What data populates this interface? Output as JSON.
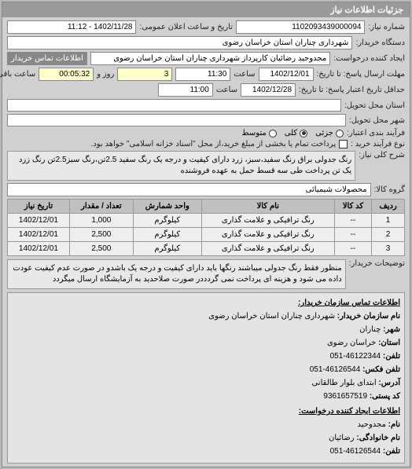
{
  "panel_title": "جزئیات اطلاعات نیاز",
  "row1": {
    "num_label": "شماره نیاز:",
    "num_value": "1102093439000094",
    "date_label": "تاریخ و ساعت اعلان عمومی:",
    "date_value": "1402/11/28 - 11:12"
  },
  "row2": {
    "buyer_label": "دستگاه خریدار:",
    "buyer_value": "شهرداری چناران استان خراسان رضوی"
  },
  "row3": {
    "creator_label": "ایجاد کننده درخواست:",
    "creator_value": "مجدوحید رضائیان کارپرداز شهرداری چناران استان خراسان رضوی",
    "contact_label": "اطلاعات تماس خریدار"
  },
  "row4": {
    "deadline_label": "مهلت ارسال پاسخ: تا تاریخ:",
    "deadline_date": "1402/12/01",
    "time_label": "ساعت",
    "deadline_time": "11:30",
    "days": "3",
    "days_label": "روز و",
    "remaining": "00:05:32",
    "remaining_label": "ساعت باقی مانده"
  },
  "row5": {
    "validity_label": "حداقل تاریخ اعتبار پاسخ: تا تاریخ:",
    "validity_date": "1402/12/28",
    "time_label": "ساعت",
    "validity_time": "11:00"
  },
  "row6": {
    "province_label": "استان محل تحویل:",
    "province_value": ""
  },
  "row7": {
    "city_label": "شهر محل تحویل:",
    "city_value": ""
  },
  "budget": {
    "label": "فرآیند بندی اعتبار:",
    "opt1": "جزئی",
    "opt2": "کلی",
    "opt3": "متوسط",
    "checked": 2
  },
  "payment": {
    "label": "نوع فرآیند خرید :",
    "check_label": "پرداخت تمام یا بخشی از مبلغ خرید،از محل \"اسناد خزانه اسلامی\" خواهد بود."
  },
  "main_title": {
    "label": "شرح کلی نیاز:",
    "text": "رنگ جدولی براق رنگ سفید،سبز، زرد دارای کیفیت و درجه یک رنگ سفید 2.5تن،رنگ سبز2.5تن رنگ زرد یک تن پرداخت طی سه قسط حمل به عهده فروشنده"
  },
  "goods": {
    "label": "گروه کالا:",
    "value": "محصولات شیمیائی"
  },
  "table": {
    "headers": [
      "ردیف",
      "کد کالا",
      "نام کالا",
      "واحد شمارش",
      "تعداد / مقدار",
      "تاریخ نیاز"
    ],
    "rows": [
      [
        "1",
        "--",
        "رنگ ترافیکی و علامت گذاری",
        "کیلوگرم",
        "1,000",
        "1402/12/01"
      ],
      [
        "2",
        "--",
        "رنگ ترافیکی و علامت گذاری",
        "کیلوگرم",
        "2,500",
        "1402/12/01"
      ],
      [
        "3",
        "--",
        "رنگ ترافیکی و علامت گذاری",
        "کیلوگرم",
        "2,500",
        "1402/12/01"
      ]
    ]
  },
  "notes": {
    "label": "توضیحات خریدار:",
    "text": "منظور فقط رنگ جدولی میباشند رنگها باید دارای کیفیت و درجه یک باشدو در صورت عدم کیفیت عودت داده می شود و هزینه ای پرداخت نمی گردددر صورت صلاحدید به آزمایشگاه ارسال میگردد"
  },
  "contact": {
    "title": "اطلاعات تماس سازمان خریدار:",
    "org_label": "نام سازمان خریدار:",
    "org": "شهرداری چناران استان خراسان رضوی",
    "city_label": "شهر:",
    "city": "چناران",
    "province_label": "استان:",
    "province": "خراسان رضوی",
    "phone_label": "تلفن:",
    "phone": "46122344-051",
    "fax_label": "تلفن فکس:",
    "fax": "46126544-051",
    "address_label": "آدرس:",
    "address": "ابتدای بلوار طالقانی",
    "postal_label": "کد پستی:",
    "postal": "9361657519",
    "creator_title": "اطلاعات ایجاد کننده درخواست:",
    "name_label": "نام:",
    "name": "مجدوحید",
    "family_label": "نام خانوادگی:",
    "family": "رضائیان",
    "cphone_label": "تلفن:",
    "cphone": "46126544-051"
  }
}
